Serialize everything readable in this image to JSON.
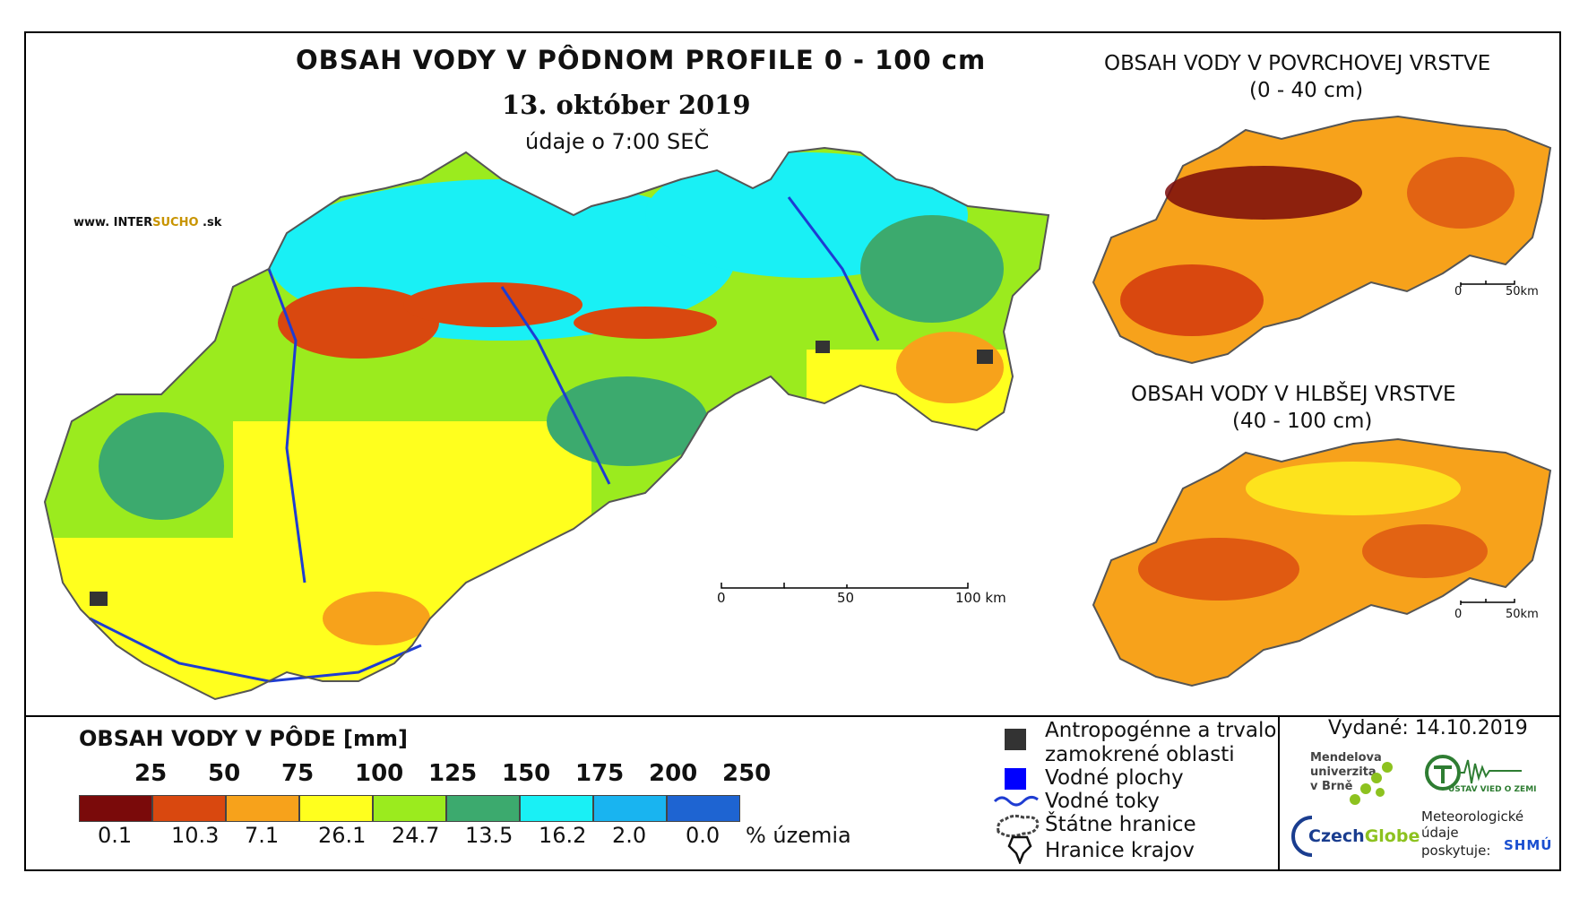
{
  "header": {
    "title": "OBSAH VODY V PÔDNOM PROFILE 0 - 100 cm",
    "date": "13. október 2019",
    "time": "údaje o 7:00 SEČ",
    "site_a": "www. INTER",
    "site_b": "SUCHO",
    "site_c": " .sk"
  },
  "inset_top": {
    "title": "OBSAH VODY V POVRCHOVEJ VRSTVE",
    "subtitle": "(0 - 40 cm)"
  },
  "inset_bottom": {
    "title": "OBSAH VODY V HLBŠEJ VRSTVE",
    "subtitle": "(40 - 100 cm)"
  },
  "scale_main": {
    "labels": [
      "0",
      "50",
      "100 km"
    ]
  },
  "scale_inset": {
    "labels": [
      "0",
      "50km"
    ]
  },
  "legend": {
    "title": "OBSAH VODY V PÔDE [mm]",
    "ticks": [
      "25",
      "50",
      "75",
      "100",
      "125",
      "150",
      "175",
      "200",
      "250"
    ],
    "classes": [
      {
        "color": "#7a0a0a",
        "percent": "0.1"
      },
      {
        "color": "#d9480f",
        "percent": "10.3"
      },
      {
        "color": "#f7a21b",
        "percent": "7.1"
      },
      {
        "color": "#ffff1e",
        "percent": "26.1"
      },
      {
        "color": "#9beb1e",
        "percent": "24.7"
      },
      {
        "color": "#3caa6e",
        "percent": "13.5"
      },
      {
        "color": "#19f0f5",
        "percent": "16.2"
      },
      {
        "color": "#19b4f0",
        "percent": "2.0"
      },
      {
        "color": "#1e64d2",
        "percent": "0.0"
      }
    ],
    "unit": "% územia"
  },
  "symbols": {
    "urban_1": "Antropogénne a trvalo",
    "urban_2": "zamokrené oblasti",
    "water_bodies": "Vodné plochy",
    "rivers": "Vodné toky",
    "border": "Štátne hranice",
    "regions": "Hranice krajov"
  },
  "footer": {
    "issued": "Vydané: 14.10.2019",
    "mendel_1": "Mendelova",
    "mendel_2": "univerzita",
    "mendel_3": "v Brně",
    "czechglobe_a": "Czech",
    "czechglobe_b": "Globe",
    "ustav": "ÚSTAV VIED O ZEMI",
    "met_1": "Meteorologické",
    "met_2": "údaje",
    "met_3": "poskytuje:",
    "shmu": "SHMÚ"
  }
}
